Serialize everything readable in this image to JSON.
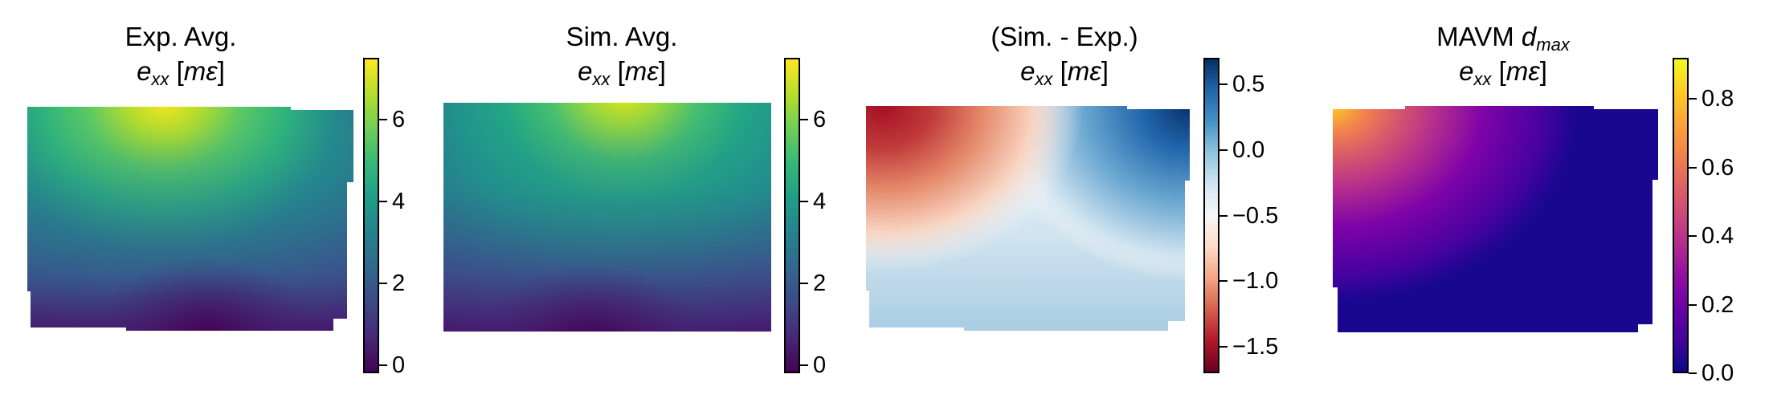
{
  "chart_data": [
    {
      "type": "heatmap",
      "title_line1": "Exp. Avg.",
      "title_line2": {
        "var": "e",
        "sub": "xx",
        "unit": "mε"
      },
      "colormap": "viridis",
      "colorbar": {
        "vmin": -0.2,
        "vmax": 7.5,
        "ticks": [
          0,
          2,
          4,
          6
        ],
        "tick_labels": [
          "0",
          "2",
          "4",
          "6"
        ]
      },
      "field_description_values": {
        "top_center_max": 7.5,
        "bottom_center_min": -0.2,
        "mid": 2.5
      }
    },
    {
      "type": "heatmap",
      "title_line1": "Sim. Avg.",
      "title_line2": {
        "var": "e",
        "sub": "xx",
        "unit": "mε"
      },
      "colormap": "viridis",
      "colorbar": {
        "vmin": -0.2,
        "vmax": 7.5,
        "ticks": [
          0,
          2,
          4,
          6
        ],
        "tick_labels": [
          "0",
          "2",
          "4",
          "6"
        ]
      },
      "field_description_values": {
        "top_center_max": 6.8,
        "bottom_center_min": -0.1,
        "mid": 2.5
      }
    },
    {
      "type": "heatmap",
      "title_line1": "(Sim. - Exp.)",
      "title_line2": {
        "var": "e",
        "sub": "xx",
        "unit": "mε"
      },
      "colormap": "RdBu",
      "colorbar": {
        "vmin": -1.7,
        "vmax": 0.7,
        "ticks": [
          0.5,
          0.0,
          -0.5,
          -1.0,
          -1.5
        ],
        "tick_labels": [
          "0.5",
          "0.0",
          "−0.5",
          "−1.0",
          "−1.5"
        ]
      },
      "field_description_values": {
        "top_left_min": -1.7,
        "top_right_max": 0.7,
        "bottom": 0.2
      }
    },
    {
      "type": "heatmap",
      "title_line1": {
        "prefix": "MAVM ",
        "var": "d",
        "sub": "max"
      },
      "title_line2": {
        "var": "e",
        "sub": "xx",
        "unit": "mε"
      },
      "colormap": "plasma",
      "colorbar": {
        "vmin": 0.0,
        "vmax": 0.92,
        "ticks": [
          0.8,
          0.6,
          0.4,
          0.2,
          0.0
        ],
        "tick_labels": [
          "0.8",
          "0.6",
          "0.4",
          "0.2",
          "0.0"
        ]
      },
      "field_description_values": {
        "top_left_max": 0.92,
        "elsewhere": 0.0
      }
    }
  ]
}
